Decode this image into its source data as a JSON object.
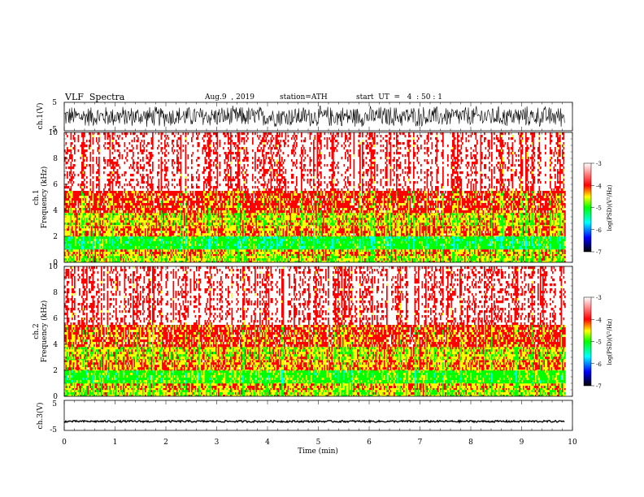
{
  "header": {
    "title": "VLF  Spectra",
    "date": "Aug.9  , 2019",
    "station": "station=ATH",
    "start": "start  UT  =   4  : 50 : 1"
  },
  "colors": {
    "colormap": [
      "#000000",
      "#0000ff",
      "#00ffff",
      "#00ff00",
      "#ffff00",
      "#ff0000",
      "#ffffff"
    ],
    "waveform": "#000000"
  },
  "chart_data": [
    {
      "type": "line",
      "name": "ch1-waveform",
      "ylabel": "ch.1(V)",
      "ylim": [
        -5,
        5
      ],
      "yticks": [
        "5",
        "-5"
      ],
      "xlim": [
        0,
        10
      ],
      "amplitude_approx": 4
    },
    {
      "type": "heatmap",
      "name": "ch1-spectrogram",
      "ylabel": "ch.1\nFrequency (kHz)",
      "ylim": [
        0,
        10
      ],
      "yticks": [
        "0",
        "2",
        "4",
        "6",
        "8",
        "10"
      ],
      "xlim": [
        0,
        9.85
      ],
      "colorbar": {
        "label": "log(PSD)(V²/Hz)",
        "range": [
          -7,
          -3
        ],
        "ticks": [
          "-3",
          "-4",
          "-5",
          "-6",
          "-7"
        ]
      },
      "bands_kHz": [
        {
          "from": 0,
          "to": 0.5,
          "level": -4.5
        },
        {
          "from": 0.5,
          "to": 1.0,
          "level": -4.3
        },
        {
          "from": 1.0,
          "to": 2.0,
          "level": -5.0
        },
        {
          "from": 2.0,
          "to": 2.8,
          "level": -4.2
        },
        {
          "from": 2.8,
          "to": 3.8,
          "level": -4.4
        },
        {
          "from": 3.8,
          "to": 5.5,
          "level": -4.0
        },
        {
          "from": 5.5,
          "to": 10,
          "level": -3.5
        }
      ]
    },
    {
      "type": "heatmap",
      "name": "ch2-spectrogram",
      "ylabel": "ch.2\nFrequency (kHz)",
      "ylim": [
        0,
        10
      ],
      "yticks": [
        "0",
        "2",
        "4",
        "6",
        "8",
        "10"
      ],
      "xlim": [
        0,
        9.85
      ],
      "colorbar": {
        "label": "log(PSD)(V²/Hz)",
        "range": [
          -7,
          -3
        ],
        "ticks": [
          "-3",
          "-4",
          "-5",
          "-6",
          "-7"
        ]
      },
      "bands_kHz": [
        {
          "from": 0,
          "to": 0.5,
          "level": -4.5
        },
        {
          "from": 0.5,
          "to": 1.0,
          "level": -4.3
        },
        {
          "from": 1.0,
          "to": 2.0,
          "level": -4.8
        },
        {
          "from": 2.0,
          "to": 2.8,
          "level": -4.2
        },
        {
          "from": 2.8,
          "to": 3.8,
          "level": -4.4
        },
        {
          "from": 3.8,
          "to": 5.5,
          "level": -4.0
        },
        {
          "from": 5.5,
          "to": 10,
          "level": -3.5
        }
      ]
    },
    {
      "type": "line",
      "name": "ch3-waveform",
      "ylabel": "ch.3(V)",
      "ylim": [
        -5,
        5
      ],
      "yticks": [
        "5",
        "-5"
      ],
      "xlim": [
        0,
        10
      ],
      "xlabel": "Time  (min)",
      "xticks": [
        "0",
        "1",
        "2",
        "3",
        "4",
        "5",
        "6",
        "7",
        "8",
        "9",
        "10"
      ],
      "offset_approx": -2,
      "amplitude_approx": 0.3
    }
  ]
}
